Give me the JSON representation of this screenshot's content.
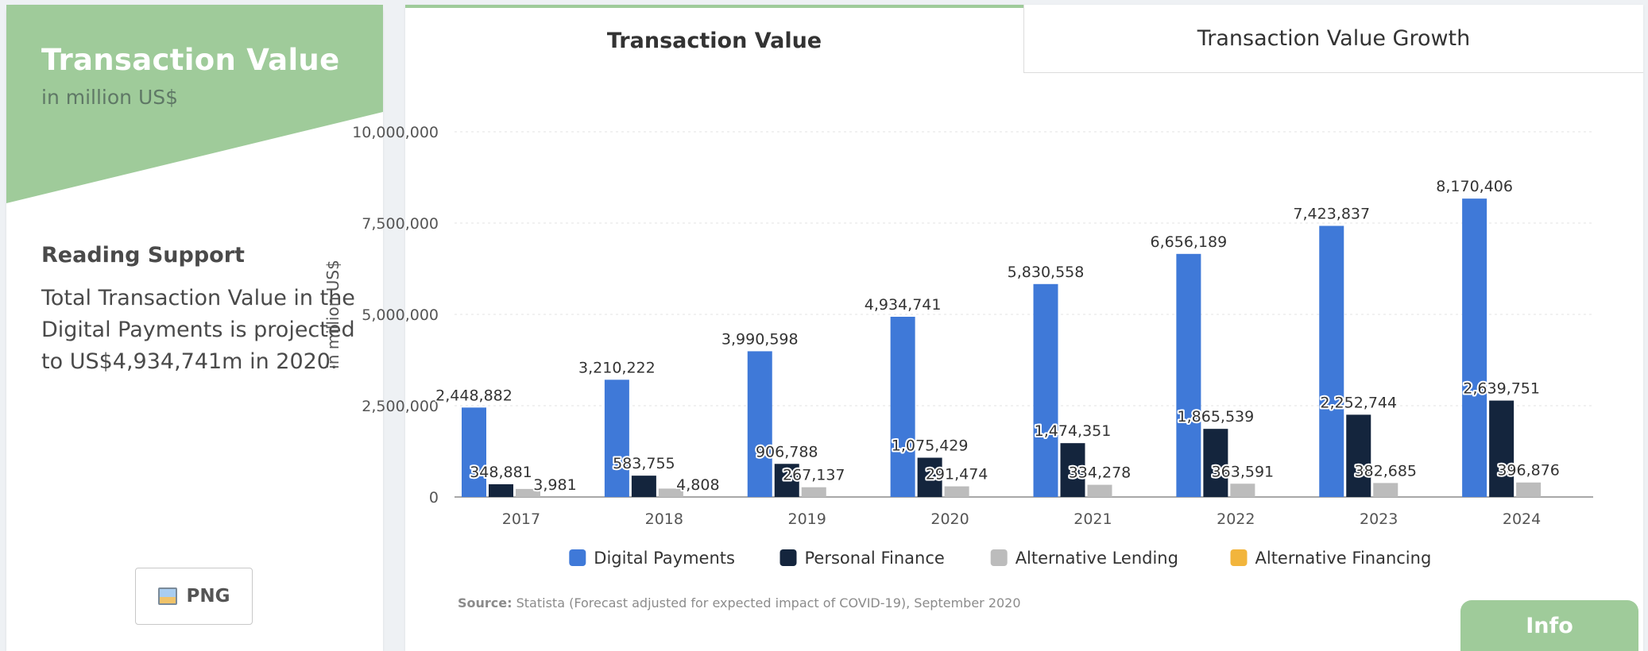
{
  "sidebar": {
    "title": "Transaction Value",
    "subtitle": "in million US$",
    "reading_support_heading": "Reading Support",
    "reading_support_text": "Total Transaction Value in the Digital Payments is projected to US$4,934,741m in 2020.",
    "png_button_label": "PNG",
    "banner_color": "#9fcb9a"
  },
  "tabs": [
    {
      "label": "Transaction Value",
      "active": true
    },
    {
      "label": "Transaction Value Growth",
      "active": false
    }
  ],
  "source": {
    "label": "Source:",
    "text": "Statista (Forecast adjusted for expected impact of COVID-19), September 2020"
  },
  "info_button_label": "Info",
  "chart_data": {
    "type": "bar",
    "ylabel": "in million US$",
    "ylim": [
      0,
      10000000
    ],
    "y_ticks": [
      0,
      2500000,
      5000000,
      7500000,
      10000000
    ],
    "y_tick_labels": [
      "0",
      "2,500,000",
      "5,000,000",
      "7,500,000",
      "10,000,000"
    ],
    "grid": true,
    "legend_position": "bottom",
    "categories": [
      "2017",
      "2018",
      "2019",
      "2020",
      "2021",
      "2022",
      "2023",
      "2024"
    ],
    "series": [
      {
        "name": "Digital Payments",
        "color": "#3f79d8",
        "values": [
          2448882,
          3210222,
          3990598,
          4934741,
          5830558,
          6656189,
          7423837,
          8170406
        ],
        "labels": [
          "2,448,882",
          "3,210,222",
          "3,990,598",
          "4,934,741",
          "5,830,558",
          "6,656,189",
          "7,423,837",
          "8,170,406"
        ]
      },
      {
        "name": "Personal Finance",
        "color": "#14253d",
        "values": [
          348881,
          583755,
          906788,
          1075429,
          1474351,
          1865539,
          2252744,
          2639751
        ],
        "labels": [
          "348,881",
          "583,755",
          "906,788",
          "1,075,429",
          "1,474,351",
          "1,865,539",
          "2,252,744",
          "2,639,751"
        ]
      },
      {
        "name": "Alternative Lending",
        "color": "#bcbcbc",
        "values": [
          220000,
          230000,
          267137,
          291474,
          334278,
          363591,
          382685,
          396876
        ],
        "labels": [
          "",
          "",
          "267,137",
          "291,474",
          "334,278",
          "363,591",
          "382,685",
          "396,876"
        ]
      },
      {
        "name": "Alternative Financing",
        "color": "#f2b53c",
        "values": [
          3981,
          4808,
          0,
          0,
          0,
          0,
          0,
          0
        ],
        "labels": [
          "3,981",
          "4,808",
          "",
          "",
          "",
          "",
          "",
          ""
        ]
      }
    ]
  }
}
